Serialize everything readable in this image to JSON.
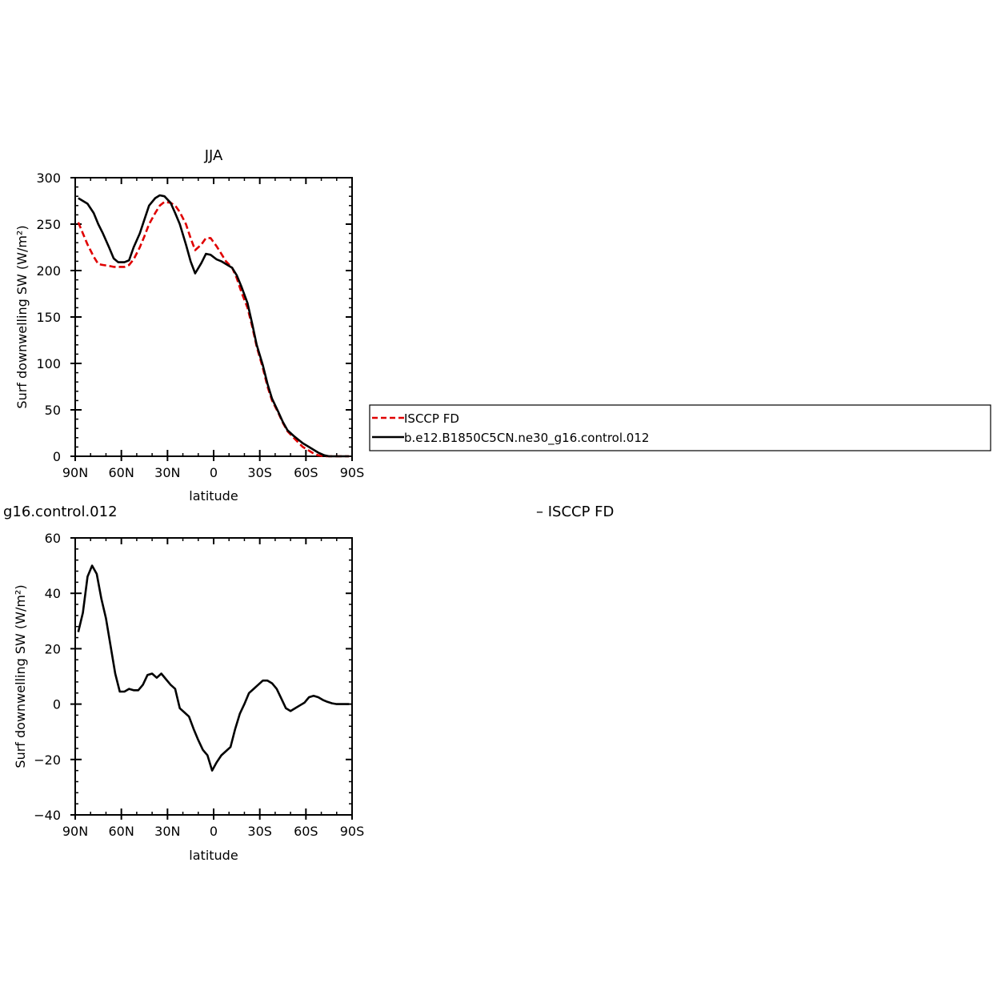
{
  "figure": {
    "top_panel_title": "JJA",
    "bottom_panel_title": "g16.control.012",
    "bottom_panel_title_right": "– ISCCP FD",
    "legend": {
      "entries": [
        {
          "label": "ISCCP FD",
          "color": "#e00000",
          "dashed": true
        },
        {
          "label": "b.e12.B1850C5CN.ne30_g16.control.012",
          "color": "#000000",
          "dashed": false
        }
      ]
    }
  },
  "chart_data": [
    {
      "type": "line",
      "title": "JJA",
      "xlabel": "latitude",
      "ylabel": "Surf downwelling SW (W/m²)",
      "xlim": [
        90,
        -90
      ],
      "ylim": [
        0,
        300
      ],
      "xticks": [
        90,
        60,
        30,
        0,
        -30,
        -60,
        -90
      ],
      "xticklabels": [
        "90N",
        "60N",
        "30N",
        "0",
        "30S",
        "60S",
        "90S"
      ],
      "yticks": [
        0,
        50,
        100,
        150,
        200,
        250,
        300
      ],
      "yticklabels": [
        "0",
        "50",
        "100",
        "150",
        "200",
        "250",
        "300"
      ],
      "series": [
        {
          "name": "ISCCP FD",
          "color": "#e00000",
          "dashed": true,
          "x": [
            88,
            85,
            82,
            78,
            75,
            72,
            68,
            65,
            62,
            58,
            55,
            52,
            48,
            45,
            42,
            38,
            35,
            32,
            28,
            25,
            22,
            18,
            15,
            12,
            8,
            5,
            2,
            -2,
            -5,
            -8,
            -12,
            -15,
            -18,
            -22,
            -25,
            -28,
            -32,
            -35,
            -38,
            -42,
            -45,
            -48,
            -52,
            -55,
            -58,
            -62,
            -65,
            -68,
            -72,
            -75,
            -78,
            -82,
            -85,
            -88
          ],
          "y": [
            252,
            240,
            228,
            215,
            207,
            206,
            205,
            204,
            204,
            204,
            206,
            212,
            225,
            237,
            250,
            262,
            270,
            274,
            273,
            270,
            263,
            250,
            235,
            222,
            228,
            235,
            235,
            226,
            218,
            210,
            203,
            192,
            177,
            160,
            140,
            118,
            95,
            75,
            60,
            47,
            36,
            27,
            20,
            15,
            10,
            6,
            3,
            1,
            0,
            0,
            0,
            0,
            0,
            0
          ]
        },
        {
          "name": "b.e12.B1850C5CN.ne30_g16.control.012",
          "color": "#000000",
          "dashed": false,
          "x": [
            88,
            85,
            82,
            78,
            75,
            72,
            68,
            65,
            62,
            58,
            55,
            52,
            48,
            45,
            42,
            38,
            35,
            32,
            28,
            25,
            22,
            18,
            15,
            12,
            8,
            5,
            2,
            -2,
            -5,
            -8,
            -12,
            -15,
            -18,
            -22,
            -25,
            -28,
            -32,
            -35,
            -38,
            -42,
            -45,
            -48,
            -52,
            -55,
            -58,
            -62,
            -65,
            -68,
            -72,
            -75,
            -78,
            -82,
            -85,
            -88
          ],
          "y": [
            278,
            275,
            272,
            262,
            250,
            240,
            225,
            213,
            209,
            209,
            211,
            225,
            240,
            255,
            270,
            278,
            281,
            280,
            273,
            262,
            250,
            228,
            210,
            197,
            208,
            218,
            217,
            212,
            210,
            207,
            203,
            195,
            183,
            165,
            143,
            120,
            98,
            78,
            62,
            48,
            37,
            28,
            22,
            18,
            14,
            10,
            7,
            4,
            1,
            0,
            0,
            0,
            0,
            0
          ]
        }
      ]
    },
    {
      "type": "line",
      "title": "g16.control.012",
      "xlabel": "latitude",
      "ylabel": "Surf downwelling SW (W/m²)",
      "xlim": [
        90,
        -90
      ],
      "ylim": [
        -40,
        60
      ],
      "xticks": [
        90,
        60,
        30,
        0,
        -30,
        -60,
        -90
      ],
      "xticklabels": [
        "90N",
        "60N",
        "30N",
        "0",
        "30S",
        "60S",
        "90S"
      ],
      "yticks": [
        -40,
        -20,
        0,
        20,
        40,
        60
      ],
      "yticklabels": [
        "−40",
        "−20",
        "0",
        "20",
        "40",
        "60"
      ],
      "series": [
        {
          "color": "#000000",
          "dashed": false,
          "x": [
            88,
            85,
            82,
            79,
            76,
            73,
            70,
            67,
            64,
            61,
            58,
            55,
            52,
            49,
            46,
            43,
            40,
            37,
            34,
            31,
            28,
            25,
            22,
            19,
            16,
            13,
            10,
            7,
            4,
            1,
            -2,
            -5,
            -8,
            -11,
            -14,
            -17,
            -20,
            -23,
            -26,
            -29,
            -32,
            -35,
            -38,
            -41,
            -44,
            -47,
            -50,
            -53,
            -56,
            -59,
            -62,
            -65,
            -68,
            -71,
            -74,
            -77,
            -80,
            -83,
            -86,
            -88
          ],
          "y": [
            26,
            33,
            46,
            50,
            47,
            38,
            31,
            21,
            11,
            4.5,
            4.5,
            5.5,
            5,
            5,
            7,
            10.5,
            11,
            9.5,
            11,
            9,
            7,
            5.5,
            -1.5,
            -3,
            -4.5,
            -9,
            -13,
            -16.5,
            -18.5,
            -24,
            -21,
            -18.5,
            -17,
            -15.5,
            -9,
            -3.5,
            0,
            4,
            5.5,
            7,
            8.5,
            8.5,
            7.5,
            5.5,
            2,
            -1.5,
            -2.5,
            -1.5,
            -0.5,
            0.5,
            2.5,
            3,
            2.5,
            1.5,
            0.8,
            0.3,
            0,
            0,
            0,
            0
          ]
        }
      ]
    }
  ]
}
